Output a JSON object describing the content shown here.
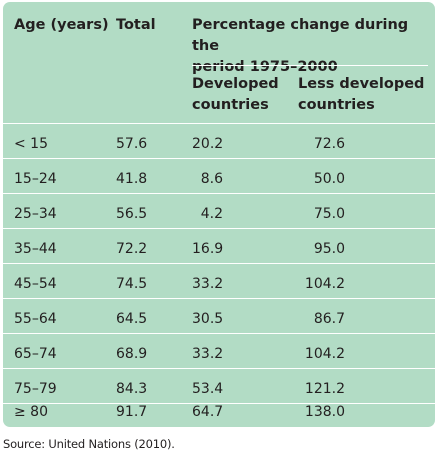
{
  "table": {
    "headers": {
      "age": "Age (years)",
      "total": "Total",
      "pct_change_line1": "Percentage change during the",
      "pct_change_line2": "period 1975–2000",
      "developed_line1": "Developed",
      "developed_line2": "countries",
      "less_developed_line1": "Less developed",
      "less_developed_line2": "countries"
    },
    "rows": [
      {
        "age": "< 15",
        "total": "57.6",
        "developed": "20.2",
        "less_developed": "72.6"
      },
      {
        "age": "15–24",
        "total": "41.8",
        "developed": "8.6",
        "less_developed": "50.0"
      },
      {
        "age": "25–34",
        "total": "56.5",
        "developed": "4.2",
        "less_developed": "75.0"
      },
      {
        "age": "35–44",
        "total": "72.2",
        "developed": "16.9",
        "less_developed": "95.0"
      },
      {
        "age": "45–54",
        "total": "74.5",
        "developed": "33.2",
        "less_developed": "104.2"
      },
      {
        "age": "55–64",
        "total": "64.5",
        "developed": "30.5",
        "less_developed": "86.7"
      },
      {
        "age": "65–74",
        "total": "68.9",
        "developed": "33.2",
        "less_developed": "104.2"
      },
      {
        "age": "75–79",
        "total": "84.3",
        "developed": "53.4",
        "less_developed": "121.2"
      },
      {
        "age": "≥ 80",
        "total": "91.7",
        "developed": "64.7",
        "less_developed": "138.0"
      }
    ]
  },
  "source": "Source: United Nations (2010).",
  "colors": {
    "panel_background": "#b2dcc5",
    "rule": "#ffffff",
    "text": "#231f20"
  }
}
